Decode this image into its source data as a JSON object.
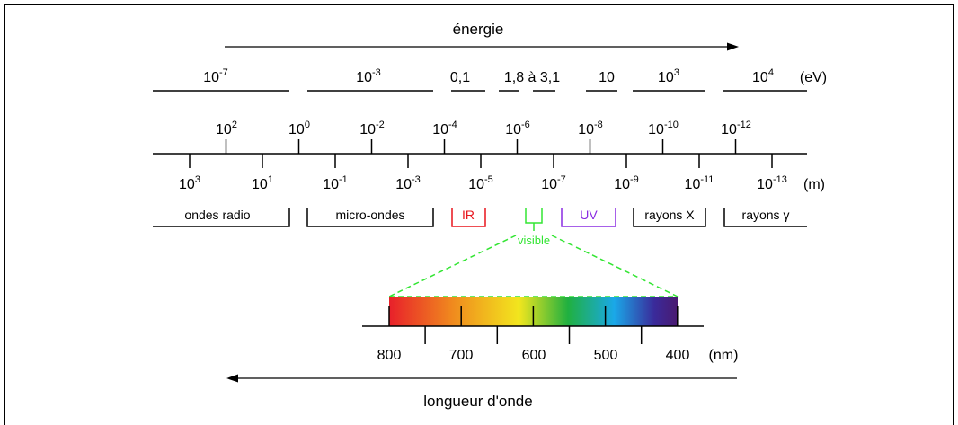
{
  "energy": {
    "label": "énergie",
    "unit": "(eV)",
    "segments": [
      {
        "base": "10",
        "exp": "-7"
      },
      {
        "base": "10",
        "exp": "-3"
      },
      {
        "text": "0,1"
      },
      {
        "text": "1,8 à 3,1"
      },
      {
        "text": "10"
      },
      {
        "base": "10",
        "exp": "3"
      },
      {
        "base": "10",
        "exp": "4"
      }
    ]
  },
  "wavelength_scale": {
    "unit": "(m)",
    "top_labels": [
      {
        "base": "10",
        "exp": "2"
      },
      {
        "base": "10",
        "exp": "0"
      },
      {
        "base": "10",
        "exp": "-2"
      },
      {
        "base": "10",
        "exp": "-4"
      },
      {
        "base": "10",
        "exp": "-6"
      },
      {
        "base": "10",
        "exp": "-8"
      },
      {
        "base": "10",
        "exp": "-10"
      },
      {
        "base": "10",
        "exp": "-12"
      }
    ],
    "bottom_labels": [
      {
        "base": "10",
        "exp": "3"
      },
      {
        "base": "10",
        "exp": "1"
      },
      {
        "base": "10",
        "exp": "-1"
      },
      {
        "base": "10",
        "exp": "-3"
      },
      {
        "base": "10",
        "exp": "-5"
      },
      {
        "base": "10",
        "exp": "-7"
      },
      {
        "base": "10",
        "exp": "-9"
      },
      {
        "base": "10",
        "exp": "-11"
      },
      {
        "base": "10",
        "exp": "-13"
      }
    ]
  },
  "domains": [
    {
      "label": "ondes radio",
      "color": "#000000"
    },
    {
      "label": "micro-ondes",
      "color": "#000000"
    },
    {
      "label": "IR",
      "color": "#e8141c"
    },
    {
      "label": "visible",
      "color": "#33e533"
    },
    {
      "label": "UV",
      "color": "#8a2be2"
    },
    {
      "label": "rayons X",
      "color": "#000000"
    },
    {
      "label": "rayons γ",
      "color": "#000000"
    }
  ],
  "visible_spectrum": {
    "unit": "(nm)",
    "labels": [
      "800",
      "700",
      "600",
      "500",
      "400"
    ],
    "colors": [
      "#e8202a",
      "#f08a1e",
      "#f2e61e",
      "#20b040",
      "#1aa8e8",
      "#3a2a9a",
      "#4a1a70"
    ]
  },
  "wavelength_label": "longueur d'onde"
}
